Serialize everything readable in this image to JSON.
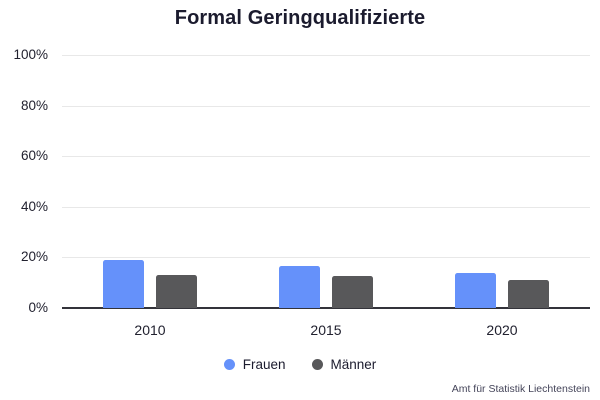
{
  "title": "Formal Geringqualifizierte",
  "source": "Amt für Statistik Liechtenstein",
  "colors": {
    "frauen": "#6591fa",
    "maenner": "#58585a",
    "gridline": "#e8e8e8",
    "axis": "#33333a",
    "text": "#21212f",
    "title_text": "#1b1b2e",
    "background": "#ffffff"
  },
  "legend": {
    "items": [
      {
        "label": "Frauen",
        "color": "#6591fa"
      },
      {
        "label": "Männer",
        "color": "#58585a"
      }
    ]
  },
  "chart_data": {
    "type": "bar",
    "title": "Formal Geringqualifizierte",
    "categories": [
      "2010",
      "2015",
      "2020"
    ],
    "series": [
      {
        "name": "Frauen",
        "color": "#6591fa",
        "values": [
          19,
          16.5,
          14
        ]
      },
      {
        "name": "Männer",
        "color": "#58585a",
        "values": [
          13,
          12.5,
          11
        ]
      }
    ],
    "xlabel": "",
    "ylabel": "",
    "ylim": [
      0,
      100
    ],
    "yticks": [
      0,
      20,
      40,
      60,
      80,
      100
    ],
    "ytick_format": "percent",
    "grid": true,
    "legend_position": "bottom",
    "source": "Amt für Statistik Liechtenstein"
  }
}
